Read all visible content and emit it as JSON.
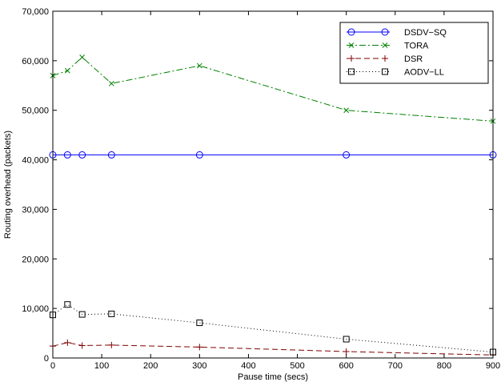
{
  "chart_data": {
    "type": "line",
    "title": "",
    "xlabel": "Pause time (secs)",
    "ylabel": "Routing overhead (packets)",
    "xlim": [
      0,
      900
    ],
    "ylim": [
      0,
      70000
    ],
    "xticks": [
      0,
      100,
      200,
      300,
      400,
      500,
      600,
      700,
      800,
      900
    ],
    "yticks": [
      0,
      10000,
      20000,
      30000,
      40000,
      50000,
      60000,
      70000
    ],
    "xtick_labels": [
      "0",
      "100",
      "200",
      "300",
      "400",
      "500",
      "600",
      "700",
      "800",
      "900"
    ],
    "ytick_labels": [
      "0",
      "10,000",
      "20,000",
      "30,000",
      "40,000",
      "50,000",
      "60,000",
      "70,000"
    ],
    "grid": false,
    "legend_position": "top-right",
    "x": [
      0,
      30,
      60,
      120,
      300,
      600,
      900
    ],
    "series": [
      {
        "name": "DSDV−SQ",
        "color": "#0000ff",
        "dash": "solid",
        "marker": "circle",
        "values": [
          41000,
          41000,
          41000,
          41000,
          41000,
          41000,
          41000
        ]
      },
      {
        "name": "TORA",
        "color": "#008000",
        "dash": "dashdot",
        "marker": "x",
        "values": [
          57000,
          58000,
          60700,
          55400,
          59000,
          50000,
          47800
        ]
      },
      {
        "name": "DSR",
        "color": "#800000",
        "dash": "dashed",
        "marker": "plus",
        "values": [
          2400,
          3100,
          2500,
          2600,
          2200,
          1300,
          600
        ]
      },
      {
        "name": "AODV−LL",
        "color": "#000000",
        "dash": "dotted",
        "marker": "square",
        "values": [
          8700,
          10800,
          8800,
          8900,
          7100,
          3800,
          1200
        ]
      }
    ]
  }
}
